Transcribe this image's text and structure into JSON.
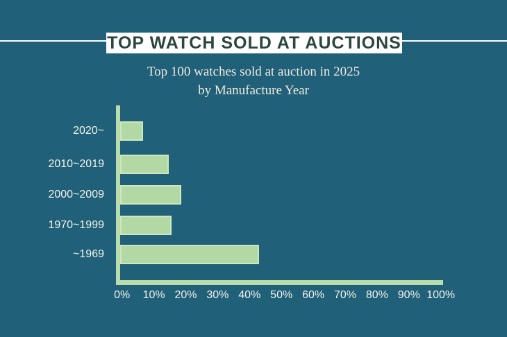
{
  "page": {
    "background_color": "#206078",
    "title": "TOP WATCH SOLD AT AUCTIONS",
    "title_box_color": "#ffffff",
    "title_text_color": "#2b463c",
    "subtitle_line1": "Top 100 watches sold at auction in 2025",
    "subtitle_line2": "by Manufacture Year",
    "subtitle_color": "#eeeadf"
  },
  "chart_data": {
    "type": "bar",
    "orientation": "horizontal",
    "title": "Top 100 watches sold at auction in 2025 by Manufacture Year",
    "categories": [
      "2020~",
      "2010~2019",
      "2000~2009",
      "1970~1999",
      "~1969"
    ],
    "values": [
      7,
      15,
      19,
      16,
      43
    ],
    "unit": "%",
    "xlabel": "",
    "ylabel": "",
    "xlim": [
      0,
      100
    ],
    "x_tick_labels": [
      "0%",
      "10%",
      "20%",
      "30%",
      "40%",
      "50%",
      "60%",
      "70%",
      "80%",
      "90%",
      "100%"
    ],
    "grid": false,
    "legend": false,
    "bar_color": "#b2d8a4",
    "bar_border_color": "#cde7bf",
    "axis_color": "#b8dcab",
    "label_color": "#f1f4ec"
  }
}
